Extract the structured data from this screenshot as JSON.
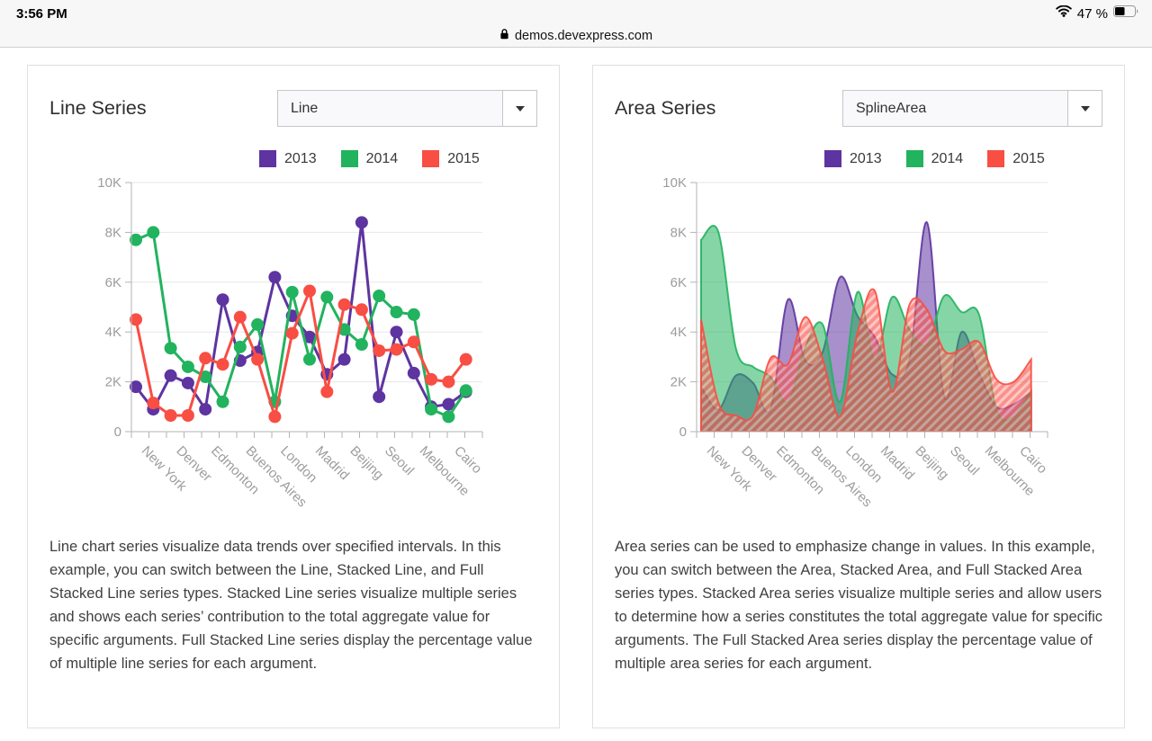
{
  "status_bar": {
    "time": "3:56 PM",
    "battery_percent": "47 %",
    "icons": [
      "wifi-icon",
      "battery-icon"
    ]
  },
  "browser": {
    "url": "demos.devexpress.com",
    "lock_icon": "lock-icon"
  },
  "panels": [
    {
      "title": "Line Series",
      "dropdown_value": "Line",
      "description": "Line chart series visualize data trends over specified intervals. In this example, you can switch between the Line, Stacked Line, and Full Stacked Line series types. Stacked Line series visualize multiple series and shows each series’ contribution to the total aggregate value for specific arguments. Full Stacked Line series display the percentage value of multiple line series for each argument."
    },
    {
      "title": "Area Series",
      "dropdown_value": "SplineArea",
      "description": "Area series can be used to emphasize change in values. In this example, you can switch between the Area, Stacked Area, and Full Stacked Area series types. Stacked Area series visualize multiple series and allow users to determine how a series constitutes the total aggregate value for specific arguments. The Full Stacked Area series display the percentage value of multiple area series for each argument."
    }
  ],
  "chart_data": [
    {
      "type": "line",
      "title": "",
      "categories": [
        "New York",
        "Denver",
        "Edmonton",
        "Buenos Aires",
        "London",
        "Madrid",
        "Beijing",
        "Seoul",
        "Melbourne",
        "Cairo"
      ],
      "x_points_per_category": 2,
      "xlabel": "",
      "ylabel": "",
      "ylim": [
        0,
        10000
      ],
      "y_ticks": {
        "labels": [
          "10K",
          "8K",
          "6K",
          "4K",
          "2K",
          "0"
        ],
        "values": [
          10000,
          8000,
          6000,
          4000,
          2000,
          0
        ]
      },
      "grid": "horizontal",
      "legend_position": "top",
      "series": [
        {
          "name": "2013",
          "color": "#5e34a0",
          "values": [
            1800,
            900,
            2250,
            1950,
            900,
            5300,
            2850,
            3200,
            6200,
            4650,
            3800,
            2300,
            2900,
            8400,
            1400,
            4000,
            2350,
            1000,
            1100,
            1600
          ]
        },
        {
          "name": "2014",
          "color": "#22b35e",
          "values": [
            7700,
            8000,
            3350,
            2600,
            2200,
            1200,
            3400,
            4300,
            1200,
            5600,
            2900,
            5400,
            4100,
            3500,
            5450,
            4800,
            4700,
            900,
            600,
            1650
          ]
        },
        {
          "name": "2015",
          "color": "#f84e44",
          "values": [
            4500,
            1150,
            650,
            650,
            2950,
            2700,
            4600,
            2900,
            600,
            3950,
            5650,
            1600,
            5100,
            4900,
            3250,
            3300,
            3600,
            2100,
            2000,
            2900
          ]
        }
      ]
    },
    {
      "type": "area",
      "subtype": "spline-area",
      "title": "",
      "categories": [
        "New York",
        "Denver",
        "Edmonton",
        "Buenos Aires",
        "London",
        "Madrid",
        "Beijing",
        "Seoul",
        "Melbourne",
        "Cairo"
      ],
      "x_points_per_category": 2,
      "xlabel": "",
      "ylabel": "",
      "ylim": [
        0,
        10000
      ],
      "y_ticks": {
        "labels": [
          "10K",
          "8K",
          "6K",
          "4K",
          "2K",
          "0"
        ],
        "values": [
          10000,
          8000,
          6000,
          4000,
          2000,
          0
        ]
      },
      "grid": "horizontal",
      "legend_position": "top",
      "series": [
        {
          "name": "2013",
          "color": "#5e34a0",
          "fill": "solid",
          "values": [
            1800,
            900,
            2250,
            1950,
            900,
            5300,
            2850,
            3200,
            6200,
            4650,
            3800,
            2300,
            2900,
            8400,
            1400,
            4000,
            2350,
            1000,
            1100,
            1600
          ]
        },
        {
          "name": "2014",
          "color": "#22b35e",
          "fill": "solid",
          "values": [
            7700,
            8000,
            3350,
            2600,
            2200,
            1200,
            3400,
            4300,
            1200,
            5600,
            2900,
            5400,
            4100,
            3500,
            5450,
            4800,
            4700,
            900,
            600,
            1650
          ]
        },
        {
          "name": "2015",
          "color": "#f84e44",
          "fill": "hatched",
          "values": [
            4500,
            1150,
            650,
            650,
            2950,
            2700,
            4600,
            2900,
            600,
            3950,
            5650,
            1600,
            5100,
            4900,
            3250,
            3300,
            3600,
            2100,
            2000,
            2900
          ]
        }
      ]
    }
  ]
}
